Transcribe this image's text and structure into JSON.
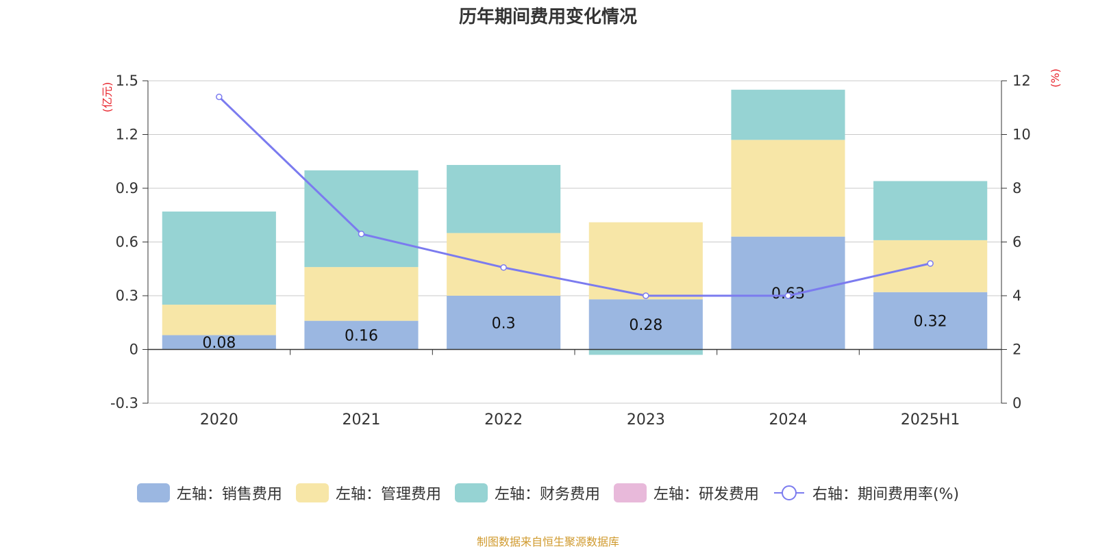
{
  "title": "历年期间费用变化情况",
  "footer": "制图数据来自恒生聚源数据库",
  "colors": {
    "sales": "#9bb7e1",
    "admin": "#f7e6a7",
    "finance": "#96d3d3",
    "rd": "#e8b9da",
    "rate": "#7b7bef",
    "axis_unit": "#e8222a"
  },
  "chart_data": {
    "type": "bar",
    "stacked": true,
    "categories": [
      "2020",
      "2021",
      "2022",
      "2023",
      "2024",
      "2025H1"
    ],
    "left_axis": {
      "unit_label": "(亿元)",
      "ylim": [
        -0.3,
        1.5
      ],
      "ticks": [
        "-0.3",
        "0",
        "0.3",
        "0.6",
        "0.9",
        "1.2",
        "1.5"
      ]
    },
    "right_axis": {
      "unit_label": "(%)",
      "ylim": [
        0,
        12
      ],
      "ticks": [
        "0",
        "2",
        "4",
        "6",
        "8",
        "10",
        "12"
      ]
    },
    "series": [
      {
        "key": "sales",
        "name": "左轴：销售费用",
        "axis": "left",
        "values": [
          0.08,
          0.16,
          0.3,
          0.28,
          0.63,
          0.32
        ],
        "labels": [
          "0.08",
          "0.16",
          "0.3",
          "0.28",
          "0.63",
          "0.32"
        ]
      },
      {
        "key": "admin",
        "name": "左轴：管理费用",
        "axis": "left",
        "values": [
          0.17,
          0.3,
          0.35,
          0.43,
          0.54,
          0.29
        ]
      },
      {
        "key": "finance",
        "name": "左轴：财务费用",
        "axis": "left",
        "values": [
          0.52,
          0.54,
          0.38,
          -0.03,
          0.28,
          0.33
        ]
      },
      {
        "key": "rd",
        "name": "左轴：研发费用",
        "axis": "left",
        "values": [
          0,
          0,
          0,
          0,
          0,
          0
        ]
      },
      {
        "key": "rate",
        "name": "右轴：期间费用率(%)",
        "axis": "right",
        "type": "line",
        "values": [
          11.4,
          6.3,
          5.05,
          4.0,
          4.0,
          5.2
        ]
      }
    ],
    "grid": true,
    "legend_position": "bottom"
  }
}
